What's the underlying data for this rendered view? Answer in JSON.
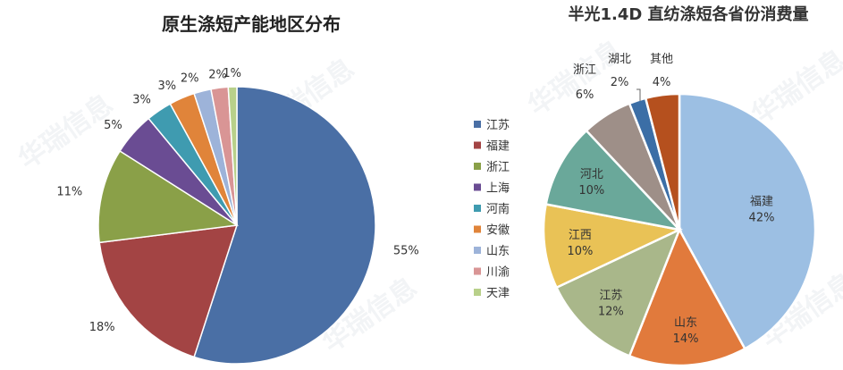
{
  "chart_data": [
    {
      "type": "pie",
      "title": "原生涤短产能地区分布",
      "legend_position": "right",
      "categories": [
        "江苏",
        "福建",
        "浙江",
        "上海",
        "河南",
        "安徽",
        "山东",
        "川渝",
        "天津"
      ],
      "values": [
        55,
        18,
        11,
        5,
        3,
        3,
        2,
        2,
        1
      ],
      "data_labels": [
        "55%",
        "18%",
        "11%",
        "5%",
        "3%",
        "3%",
        "2%",
        "2%",
        "1%"
      ],
      "colors": [
        "#4a6fa5",
        "#a34444",
        "#8aa048",
        "#6a4c93",
        "#3f9bb0",
        "#e0843a",
        "#9db3d9",
        "#d99595",
        "#b8d08a"
      ]
    },
    {
      "type": "pie",
      "title": "半光1.4D 直纺涤短各省份消费量",
      "legend_position": "none",
      "categories": [
        "福建",
        "山东",
        "江苏",
        "江西",
        "河北",
        "浙江",
        "湖北",
        "其他"
      ],
      "values": [
        42,
        14,
        12,
        10,
        10,
        6,
        2,
        4
      ],
      "data_labels": [
        "42%",
        "14%",
        "12%",
        "10%",
        "10%",
        "6%",
        "2%",
        "4%"
      ],
      "colors": [
        "#9cbfe3",
        "#e17a3c",
        "#a9b78a",
        "#e9c256",
        "#6aa89a",
        "#9e8f88",
        "#3b6ea6",
        "#b5501e"
      ]
    }
  ],
  "watermark": "华瑞信息"
}
